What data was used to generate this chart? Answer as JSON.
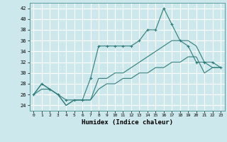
{
  "xlabel": "Humidex (Indice chaleur)",
  "ylabel": "",
  "xlim": [
    -0.5,
    23.5
  ],
  "ylim": [
    23,
    43
  ],
  "yticks": [
    24,
    26,
    28,
    30,
    32,
    34,
    36,
    38,
    40,
    42
  ],
  "xticks": [
    0,
    1,
    2,
    3,
    4,
    5,
    6,
    7,
    8,
    9,
    10,
    11,
    12,
    13,
    14,
    15,
    16,
    17,
    18,
    19,
    20,
    21,
    22,
    23
  ],
  "bg_color": "#cde8ec",
  "grid_color": "#ffffff",
  "line_color": "#2e7d7a",
  "lines": [
    {
      "x": [
        0,
        1,
        2,
        3,
        4,
        5,
        6,
        7,
        8,
        9,
        10,
        11,
        12,
        13,
        14,
        15,
        16,
        17,
        18,
        19,
        20,
        21,
        22,
        23
      ],
      "y": [
        26,
        28,
        27,
        26,
        25,
        25,
        25,
        29,
        35,
        35,
        35,
        35,
        35,
        36,
        38,
        38,
        42,
        39,
        36,
        35,
        32,
        32,
        32,
        31
      ],
      "marker": "+"
    },
    {
      "x": [
        0,
        1,
        2,
        3,
        4,
        5,
        6,
        7,
        8,
        9,
        10,
        11,
        12,
        13,
        14,
        15,
        16,
        17,
        18,
        19,
        20,
        21,
        22,
        23
      ],
      "y": [
        26,
        28,
        27,
        26,
        24,
        25,
        25,
        25,
        29,
        29,
        30,
        30,
        31,
        32,
        33,
        34,
        35,
        36,
        36,
        36,
        35,
        32,
        31,
        31
      ],
      "marker": null
    },
    {
      "x": [
        0,
        1,
        2,
        3,
        4,
        5,
        6,
        7,
        8,
        9,
        10,
        11,
        12,
        13,
        14,
        15,
        16,
        17,
        18,
        19,
        20,
        21,
        22,
        23
      ],
      "y": [
        26,
        27,
        27,
        26,
        24,
        25,
        25,
        25,
        27,
        28,
        28,
        29,
        29,
        30,
        30,
        31,
        31,
        32,
        32,
        33,
        33,
        30,
        31,
        31
      ],
      "marker": null
    }
  ]
}
